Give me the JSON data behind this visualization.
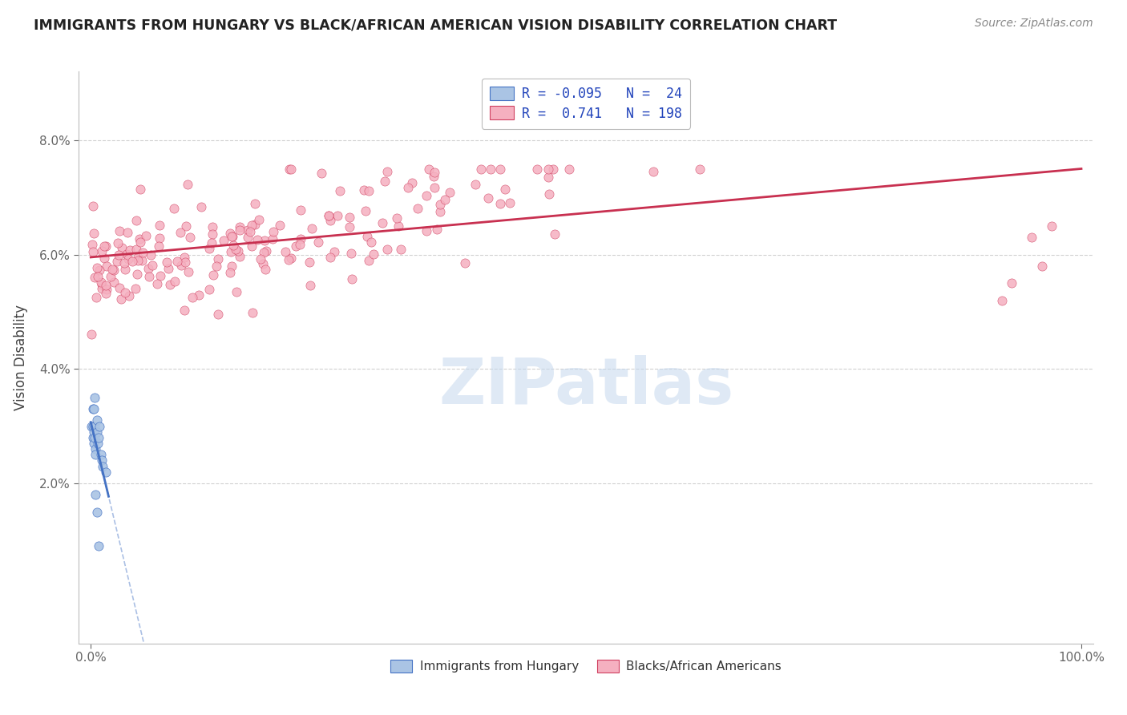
{
  "title": "IMMIGRANTS FROM HUNGARY VS BLACK/AFRICAN AMERICAN VISION DISABILITY CORRELATION CHART",
  "source": "Source: ZipAtlas.com",
  "ylabel": "Vision Disability",
  "y_ticks": [
    0.02,
    0.04,
    0.06,
    0.08
  ],
  "y_tick_labels": [
    "2.0%",
    "4.0%",
    "6.0%",
    "8.0%"
  ],
  "blue_color": "#aac4e4",
  "pink_color": "#f5b0c0",
  "blue_edge_color": "#4472c4",
  "pink_edge_color": "#d04060",
  "blue_line_color": "#4472c4",
  "pink_line_color": "#c83050",
  "watermark": "ZIPatlas",
  "background_color": "#ffffff",
  "grid_color": "#cccccc",
  "legend_label1": "R = -0.095   N =  24",
  "legend_label2": "R =  0.741   N = 198",
  "bottom_label1": "Immigrants from Hungary",
  "bottom_label2": "Blacks/African Americans",
  "title_color": "#222222",
  "source_color": "#888888",
  "legend_text_color": "#2244bb",
  "watermark_color": "#c5d8ee",
  "blue_x": [
    0.001,
    0.002,
    0.002,
    0.003,
    0.003,
    0.004,
    0.004,
    0.005,
    0.005,
    0.006,
    0.006,
    0.007,
    0.008,
    0.009,
    0.01,
    0.011,
    0.012,
    0.015,
    0.002,
    0.003,
    0.004,
    0.005,
    0.006,
    0.008
  ],
  "blue_y": [
    0.03,
    0.028,
    0.03,
    0.027,
    0.029,
    0.028,
    0.03,
    0.026,
    0.025,
    0.029,
    0.031,
    0.027,
    0.028,
    0.03,
    0.025,
    0.024,
    0.023,
    0.022,
    0.033,
    0.033,
    0.035,
    0.018,
    0.015,
    0.009
  ]
}
